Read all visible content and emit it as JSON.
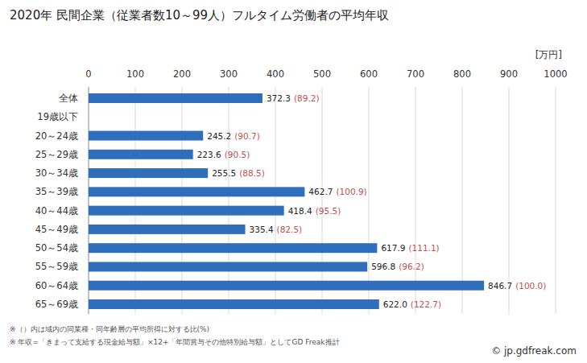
{
  "chart_data": {
    "type": "bar",
    "orientation": "horizontal",
    "title": "2020年 民間企業（従業者数10～99人）フルタイム労働者の平均年収",
    "unit_label": "[万円]",
    "categories": [
      "全体",
      "19歳以下",
      "20～24歳",
      "25～29歳",
      "30～34歳",
      "35～39歳",
      "40～44歳",
      "45～49歳",
      "50～54歳",
      "55～59歳",
      "60～64歳",
      "65～69歳"
    ],
    "values": [
      372.3,
      null,
      245.2,
      223.6,
      255.5,
      462.7,
      418.4,
      335.4,
      617.9,
      596.8,
      846.7,
      622.0
    ],
    "value_labels": [
      "372.3",
      null,
      "245.2",
      "223.6",
      "255.5",
      "462.7",
      "418.4",
      "335.4",
      "617.9",
      "596.8",
      "846.7",
      "622.0"
    ],
    "ratios": [
      89.2,
      null,
      90.7,
      90.5,
      88.5,
      100.9,
      95.5,
      82.5,
      111.1,
      96.2,
      100.0,
      122.7
    ],
    "ratio_labels": [
      "(89.2)",
      null,
      "(90.7)",
      "(90.5)",
      "(88.5)",
      "(100.9)",
      "(95.5)",
      "(82.5)",
      "(111.1)",
      "(96.2)",
      "(100.0)",
      "(122.7)"
    ],
    "color": "#2f6eba",
    "ratio_color": "#c0504d",
    "xlim": [
      0,
      1000
    ],
    "xticks": [
      0,
      100,
      200,
      300,
      400,
      500,
      600,
      700,
      800,
      900,
      1000
    ],
    "grid": true,
    "data_labels": true,
    "notes": [
      "※（）内は域内の同業種・同年齢層の平均所得に対する比(%)",
      "※ 年収=「きまって支給する現金給与額」×12+「年間賞与その他特別給与額」としてGD Freak推計"
    ],
    "source": "© jp.gdfreak.com"
  }
}
